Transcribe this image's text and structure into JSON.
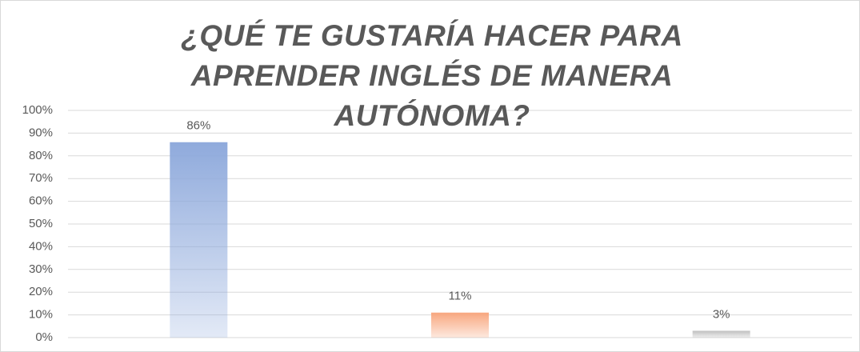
{
  "chart_data": {
    "type": "bar",
    "title": "¿QUÉ TE GUSTARÍA HACER PARA APRENDER INGLÉS DE MANERA AUTÓNOMA?",
    "categories": [
      null,
      null,
      null
    ],
    "values": [
      86,
      11,
      3
    ],
    "value_labels": [
      "86%",
      "11%",
      "3%"
    ],
    "colors": [
      "#8faadc",
      "#f8a77f",
      "#bfbfbf"
    ],
    "ylim": [
      0,
      100
    ],
    "yticks": [
      {
        "value": 0,
        "label": "0%"
      },
      {
        "value": 10,
        "label": "10%"
      },
      {
        "value": 20,
        "label": "20%"
      },
      {
        "value": 30,
        "label": "30%"
      },
      {
        "value": 40,
        "label": "40%"
      },
      {
        "value": 50,
        "label": "50%"
      },
      {
        "value": 60,
        "label": "60%"
      },
      {
        "value": 70,
        "label": "70%"
      },
      {
        "value": 80,
        "label": "80%"
      },
      {
        "value": 90,
        "label": "90%"
      },
      {
        "value": 100,
        "label": "100%"
      }
    ],
    "grid": true
  }
}
